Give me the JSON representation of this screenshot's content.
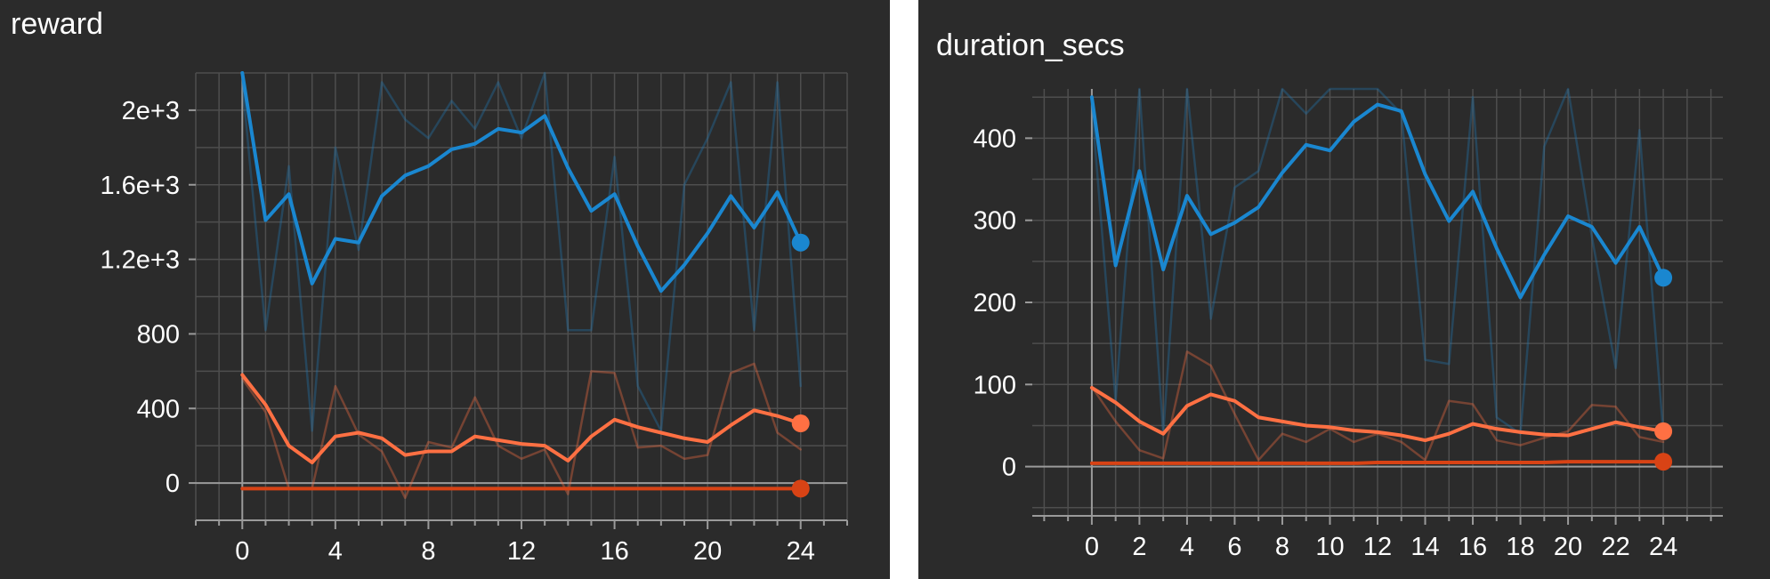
{
  "chart_data": [
    {
      "type": "line",
      "title": "reward",
      "xlabel": "",
      "ylabel": "",
      "x": [
        0,
        1,
        2,
        3,
        4,
        5,
        6,
        7,
        8,
        9,
        10,
        11,
        12,
        13,
        14,
        15,
        16,
        17,
        18,
        19,
        20,
        21,
        22,
        23,
        24
      ],
      "xlim": [
        -2,
        26
      ],
      "ylim": [
        -200,
        2200
      ],
      "x_ticks": [
        0,
        4,
        8,
        12,
        16,
        20,
        24
      ],
      "y_ticks": [
        0,
        400,
        800,
        1200,
        1600,
        2000
      ],
      "y_tick_labels": [
        "0",
        "400",
        "800",
        "1.2e+3",
        "1.6e+3",
        "2e+3"
      ],
      "grid": true,
      "series": [
        {
          "role": "raw",
          "color": "#1f77b4",
          "values": [
            2150,
            820,
            1700,
            280,
            1800,
            1250,
            2150,
            1950,
            1850,
            2050,
            1900,
            2150,
            1850,
            2200,
            820,
            820,
            1750,
            520,
            280,
            1600,
            1850,
            2150,
            820,
            2150,
            520
          ]
        },
        {
          "role": "smoothed",
          "color": "#1a87d0",
          "values": [
            2200,
            1410,
            1550,
            1070,
            1310,
            1290,
            1540,
            1650,
            1700,
            1790,
            1820,
            1900,
            1880,
            1970,
            1690,
            1460,
            1550,
            1270,
            1030,
            1170,
            1340,
            1540,
            1370,
            1560,
            1290
          ]
        },
        {
          "role": "raw",
          "color": "#ff7043",
          "values": [
            560,
            380,
            -30,
            -30,
            520,
            260,
            170,
            -80,
            220,
            190,
            460,
            200,
            130,
            180,
            -60,
            600,
            590,
            190,
            200,
            130,
            150,
            590,
            640,
            270,
            180
          ]
        },
        {
          "role": "smoothed",
          "color": "#ff7043",
          "values": [
            580,
            420,
            200,
            110,
            250,
            270,
            240,
            150,
            170,
            170,
            250,
            230,
            210,
            200,
            120,
            250,
            340,
            300,
            270,
            240,
            220,
            310,
            390,
            360,
            320
          ]
        },
        {
          "role": "smoothed",
          "color": "#d84315",
          "values": [
            -30,
            -30,
            -30,
            -30,
            -30,
            -30,
            -30,
            -30,
            -30,
            -30,
            -30,
            -30,
            -30,
            -30,
            -30,
            -30,
            -30,
            -30,
            -30,
            -30,
            -30,
            -30,
            -30,
            -30,
            -30
          ]
        }
      ]
    },
    {
      "type": "line",
      "title": "duration_secs",
      "xlabel": "",
      "ylabel": "",
      "x": [
        0,
        1,
        2,
        3,
        4,
        5,
        6,
        7,
        8,
        9,
        10,
        11,
        12,
        13,
        14,
        15,
        16,
        17,
        18,
        19,
        20,
        21,
        22,
        23,
        24
      ],
      "xlim": [
        -2.5,
        26.5
      ],
      "ylim": [
        -60,
        460
      ],
      "x_ticks": [
        0,
        2,
        4,
        6,
        8,
        10,
        12,
        14,
        16,
        18,
        20,
        22,
        24
      ],
      "y_ticks": [
        0,
        100,
        200,
        300,
        400
      ],
      "y_tick_labels": [
        "0",
        "100",
        "200",
        "300",
        "400"
      ],
      "grid": true,
      "series": [
        {
          "role": "raw",
          "color": "#1f77b4",
          "values": [
            440,
            80,
            460,
            40,
            460,
            180,
            340,
            360,
            460,
            430,
            460,
            460,
            460,
            430,
            130,
            125,
            450,
            60,
            40,
            390,
            460,
            280,
            120,
            410,
            40
          ]
        },
        {
          "role": "smoothed",
          "color": "#1a87d0",
          "values": [
            450,
            245,
            360,
            240,
            330,
            283,
            297,
            316,
            358,
            392,
            385,
            420,
            441,
            433,
            356,
            299,
            335,
            266,
            206,
            258,
            305,
            292,
            248,
            292,
            230
          ]
        },
        {
          "role": "raw",
          "color": "#ff7043",
          "values": [
            97,
            55,
            20,
            10,
            140,
            123,
            64,
            8,
            40,
            30,
            46,
            30,
            40,
            30,
            8,
            80,
            76,
            32,
            26,
            35,
            43,
            75,
            73,
            36,
            30
          ]
        },
        {
          "role": "smoothed",
          "color": "#ff7043",
          "values": [
            96,
            78,
            55,
            40,
            74,
            88,
            80,
            60,
            55,
            50,
            48,
            44,
            42,
            38,
            32,
            40,
            52,
            46,
            42,
            39,
            38,
            46,
            54,
            48,
            43
          ]
        },
        {
          "role": "smoothed",
          "color": "#d84315",
          "values": [
            4,
            4,
            4,
            4,
            4,
            4,
            4,
            4,
            4,
            4,
            4,
            4,
            5,
            5,
            5,
            5,
            5,
            5,
            5,
            5,
            6,
            6,
            6,
            6,
            6
          ]
        }
      ]
    }
  ]
}
